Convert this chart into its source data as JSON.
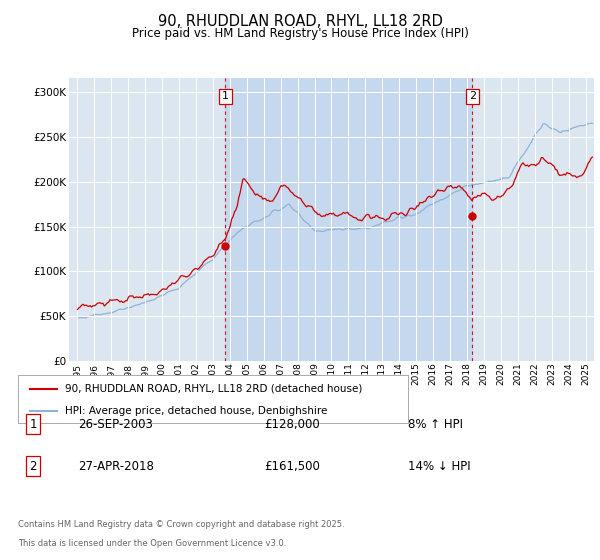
{
  "title": "90, RHUDDLAN ROAD, RHYL, LL18 2RD",
  "subtitle": "Price paid vs. HM Land Registry's House Price Index (HPI)",
  "ylabel_ticks": [
    "£0",
    "£50K",
    "£100K",
    "£150K",
    "£200K",
    "£250K",
    "£300K"
  ],
  "ytick_values": [
    0,
    50000,
    100000,
    150000,
    200000,
    250000,
    300000
  ],
  "ylim": [
    0,
    315000
  ],
  "xlim_start": 1994.5,
  "xlim_end": 2025.5,
  "background_color": "#dce6f0",
  "fig_bg_color": "#ffffff",
  "red_color": "#cc0000",
  "blue_color": "#8db4d8",
  "shade_color": "#c5d8ee",
  "transaction1_year": 2003.74,
  "transaction2_year": 2018.32,
  "legend_line1": "90, RHUDDLAN ROAD, RHYL, LL18 2RD (detached house)",
  "legend_line2": "HPI: Average price, detached house, Denbighshire",
  "ann1_date": "26-SEP-2003",
  "ann1_price": "£128,000",
  "ann1_pct": "8% ↑ HPI",
  "ann2_date": "27-APR-2018",
  "ann2_price": "£161,500",
  "ann2_pct": "14% ↓ HPI",
  "footer1": "Contains HM Land Registry data © Crown copyright and database right 2025.",
  "footer2": "This data is licensed under the Open Government Licence v3.0."
}
